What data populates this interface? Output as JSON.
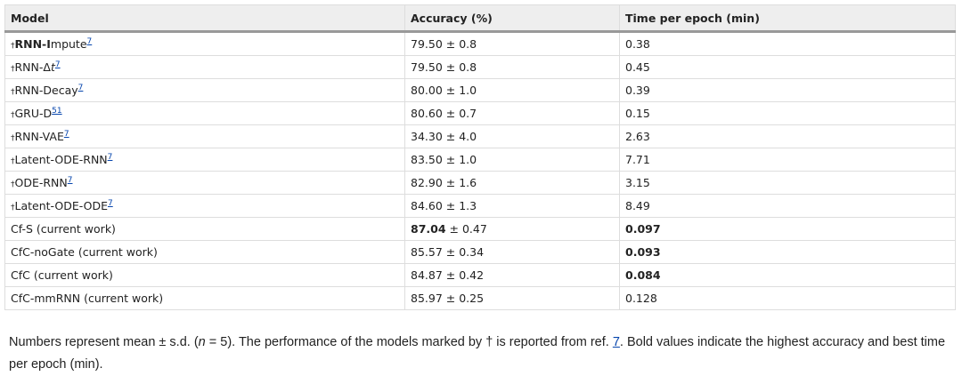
{
  "table": {
    "header": [
      "Model",
      "Accuracy (%)",
      "Time per epoch (min)"
    ],
    "rows": [
      {
        "dagger": "†",
        "name_bold": "RNN-I",
        "name": "mpute",
        "ref": "7",
        "accuracy": [
          "79.50",
          "± 0.8"
        ],
        "time": "0.38"
      },
      {
        "dagger": "†",
        "name": "RNN-Δ",
        "name_italic": "t",
        "ref": "7",
        "accuracy": [
          "79.50",
          "± 0.8"
        ],
        "time": "0.45"
      },
      {
        "dagger": "†",
        "name": "RNN-Decay",
        "ref": "7",
        "accuracy": [
          "80.00",
          "± 1.0"
        ],
        "time": "0.39"
      },
      {
        "dagger": "†",
        "name": "GRU-D",
        "ref": "51",
        "accuracy": [
          "80.60",
          "± 0.7"
        ],
        "time": "0.15"
      },
      {
        "dagger": "†",
        "name": "RNN-VAE",
        "ref": "7",
        "accuracy": [
          "34.30",
          "± 4.0"
        ],
        "time": "2.63"
      },
      {
        "dagger": "†",
        "name": "Latent-ODE-RNN",
        "ref": "7",
        "accuracy": [
          "83.50",
          "± 1.0"
        ],
        "time": "7.71"
      },
      {
        "dagger": "†",
        "name": "ODE-RNN",
        "ref": "7",
        "accuracy": [
          "82.90",
          "± 1.6"
        ],
        "time": "3.15"
      },
      {
        "dagger": "†",
        "name": "Latent-ODE-ODE",
        "ref": "7",
        "accuracy": [
          "84.60",
          "± 1.3"
        ],
        "time": "8.49"
      },
      {
        "name": "Cf-S (current work)",
        "accuracy": [
          "87.04",
          "± 0.47"
        ],
        "time": "0.097",
        "bold_accuracy": true,
        "bold_time": true
      },
      {
        "name": "CfC-noGate (current work)",
        "accuracy": [
          "85.57",
          "± 0.34"
        ],
        "time": "0.093",
        "bold_time": true
      },
      {
        "name": "CfC (current work)",
        "accuracy": [
          "84.87",
          "± 0.42"
        ],
        "time": "0.084",
        "bold_time": true
      },
      {
        "name": "CfC-mmRNN (current work)",
        "accuracy": [
          "85.97",
          "± 0.25"
        ],
        "time": "0.128"
      }
    ]
  },
  "caption": [
    {
      "text": "Numbers represent mean ± s.d. ("
    },
    {
      "text": "n",
      "italic": true
    },
    {
      "text": " = 5). The performance of the models marked by † is reported from ref. "
    },
    {
      "text": "7",
      "link": true
    },
    {
      "text": ". Bold values indicate the highest accuracy and best time per epoch (min)."
    }
  ]
}
